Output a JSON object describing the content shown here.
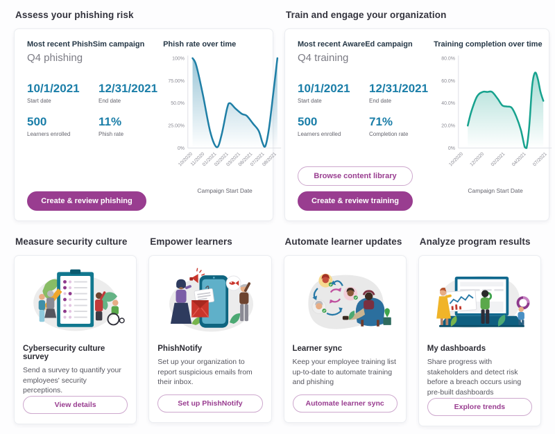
{
  "sections": {
    "phishing": {
      "heading": "Assess your phishing risk",
      "card_title": "Most recent PhishSim campaign",
      "campaign_name": "Q4 phishing",
      "stats": [
        {
          "value": "10/1/2021",
          "label": "Start date"
        },
        {
          "value": "12/31/2021",
          "label": "End date"
        },
        {
          "value": "500",
          "label": "Learners enrolled"
        },
        {
          "value": "11%",
          "label": "Phish rate"
        }
      ],
      "primary_button": "Create & review phishing"
    },
    "training": {
      "heading": "Train and engage your organization",
      "card_title": "Most recent AwareEd campaign",
      "campaign_name": "Q4 training",
      "stats": [
        {
          "value": "10/1/2021",
          "label": "Start date"
        },
        {
          "value": "12/31/2021",
          "label": "End date"
        },
        {
          "value": "500",
          "label": "Learners enrolled"
        },
        {
          "value": "71%",
          "label": "Completion rate"
        }
      ],
      "secondary_button": "Browse content library",
      "primary_button": "Create & review training"
    },
    "feature_cards": [
      {
        "heading": "Measure security culture",
        "title": "Cybersecurity culture survey",
        "description": "Send a survey to quantify your employees' security perceptions.",
        "button": "View details",
        "illustration": "survey-clipboard-illustration"
      },
      {
        "heading": "Empower learners",
        "title": "PhishNotify",
        "description": "Set up your organization to report suspicious emails from their inbox.",
        "button": "Set up PhishNotify",
        "illustration": "phone-email-report-illustration"
      },
      {
        "heading": "Automate learner updates",
        "title": "Learner sync",
        "description": "Keep your employee training list up-to-date to automate training and phishing",
        "button": "Automate learner sync",
        "illustration": "learner-sync-illustration"
      },
      {
        "heading": "Analyze program results",
        "title": "My dashboards",
        "description": "Share progress with stakeholders and detect risk before a breach occurs using pre-built dashboards",
        "button": "Explore trends",
        "illustration": "laptop-dashboards-illustration"
      }
    ]
  },
  "chart_data": [
    {
      "type": "area",
      "title": "Phish rate over time",
      "xlabel": "Campaign Start Date",
      "ylabel": "",
      "x_ticks": [
        "10/2020",
        "11/2020",
        "01/2021",
        "02/2021",
        "03/2021",
        "06/2021",
        "07/2021",
        "08/2021"
      ],
      "y_ticks": [
        "100%",
        "75.00%",
        "50.0%",
        "25.00%",
        "0%"
      ],
      "ylim": [
        0,
        100
      ],
      "grid": false,
      "legend": false,
      "color": "#1f7fa6",
      "series": [
        {
          "name": "Phish rate",
          "points": [
            [
              0.05,
              100
            ],
            [
              0.09,
              92
            ],
            [
              0.16,
              60
            ],
            [
              0.24,
              18
            ],
            [
              0.31,
              1
            ],
            [
              0.36,
              14
            ],
            [
              0.42,
              44
            ],
            [
              0.45,
              50
            ],
            [
              0.51,
              44
            ],
            [
              0.58,
              38
            ],
            [
              0.63,
              36
            ],
            [
              0.7,
              27
            ],
            [
              0.76,
              19
            ],
            [
              0.8,
              6
            ],
            [
              0.83,
              2
            ],
            [
              0.87,
              22
            ],
            [
              0.92,
              65
            ],
            [
              0.96,
              100
            ]
          ]
        }
      ],
      "tick_values_approx": {
        "10/2020": 100,
        "11/2020": 60,
        "01/2021": 1,
        "02/2021": 50,
        "03/2021": 38,
        "06/2021": 22,
        "07/2021": 2,
        "08/2021": 100
      }
    },
    {
      "type": "area",
      "title": "Training completion over time",
      "xlabel": "Campaign Start Date",
      "ylabel": "",
      "x_ticks": [
        "10/2020",
        "12/2020",
        "02/2021",
        "04/2021",
        "07/2021"
      ],
      "y_ticks": [
        "80.0%",
        "60.0%",
        "40.0%",
        "20.0%",
        "0%"
      ],
      "ylim": [
        0,
        80
      ],
      "grid": false,
      "legend": false,
      "color": "#17a28e",
      "series": [
        {
          "name": "Completion rate",
          "points": [
            [
              0.1,
              20
            ],
            [
              0.14,
              33
            ],
            [
              0.2,
              46
            ],
            [
              0.26,
              50
            ],
            [
              0.31,
              50
            ],
            [
              0.36,
              50
            ],
            [
              0.42,
              44
            ],
            [
              0.47,
              38
            ],
            [
              0.52,
              37
            ],
            [
              0.57,
              36
            ],
            [
              0.62,
              28
            ],
            [
              0.67,
              16
            ],
            [
              0.71,
              1
            ],
            [
              0.73,
              0
            ],
            [
              0.76,
              20
            ],
            [
              0.79,
              55
            ],
            [
              0.82,
              67
            ],
            [
              0.85,
              62
            ],
            [
              0.88,
              50
            ],
            [
              0.91,
              42
            ]
          ]
        }
      ],
      "tick_values_approx": {
        "10/2020": 20,
        "12/2020": 50,
        "02/2021": 38,
        "04/2021": 8,
        "07/2021": 42
      }
    }
  ],
  "colors": {
    "accent_purple": "#993d90",
    "stat_teal": "#1b7ea8",
    "phish_chart_line": "#1f7fa6",
    "training_chart_line": "#17a28e",
    "heading_text": "#33333d",
    "card_title_text": "#253746",
    "muted_text": "#63636c",
    "card_background": "#ffffff",
    "page_background": "#fdfdfe"
  }
}
